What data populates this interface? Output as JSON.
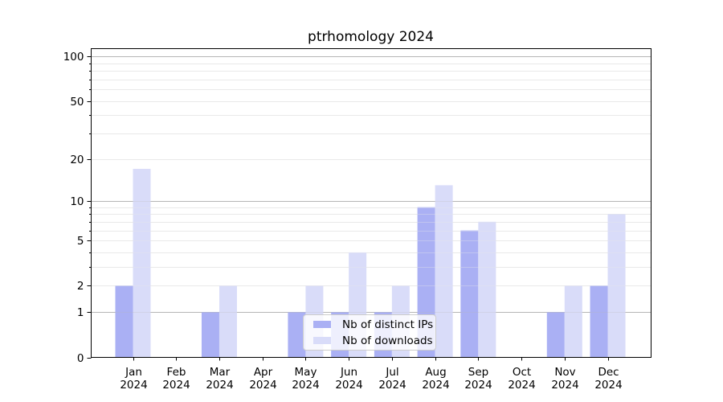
{
  "title": "ptrhomology 2024",
  "legend": {
    "items": [
      {
        "label": "Nb of distinct IPs",
        "color": "#aab0f4"
      },
      {
        "label": "Nb of downloads",
        "color": "#d9dcf9"
      }
    ]
  },
  "colors": {
    "bar_ips": "#aab0f4",
    "bar_downloads": "#d9dcf9",
    "grid_major": "#b6b6b6",
    "grid_minor": "#e9e9e9",
    "axis": "#000000",
    "text": "#000000"
  },
  "chart_data": {
    "type": "bar",
    "title": "ptrhomology 2024",
    "categories": [
      "Jan",
      "Feb",
      "Mar",
      "Apr",
      "May",
      "Jun",
      "Jul",
      "Aug",
      "Sep",
      "Oct",
      "Nov",
      "Dec"
    ],
    "category_year": "2024",
    "series": [
      {
        "name": "Nb of distinct IPs",
        "color": "#aab0f4",
        "values": [
          2,
          0,
          1,
          0,
          1,
          1,
          1,
          9,
          6,
          0,
          1,
          2
        ]
      },
      {
        "name": "Nb of downloads",
        "color": "#d9dcf9",
        "values": [
          17,
          0,
          2,
          0,
          2,
          4,
          2,
          13,
          7,
          0,
          2,
          8
        ]
      }
    ],
    "xlabel": "",
    "ylabel": "",
    "yscale": "log1p",
    "yticks": [
      0,
      1,
      2,
      5,
      10,
      20,
      50,
      100
    ],
    "ytick_major_gridlines": [
      1,
      10,
      100
    ],
    "ytick_minor_gridlines": [
      2,
      3,
      4,
      5,
      6,
      7,
      8,
      9,
      20,
      30,
      40,
      50,
      60,
      70,
      80,
      90
    ],
    "ylim": [
      0,
      112
    ],
    "grid": "both",
    "legend_position": "inside-lower-center"
  }
}
